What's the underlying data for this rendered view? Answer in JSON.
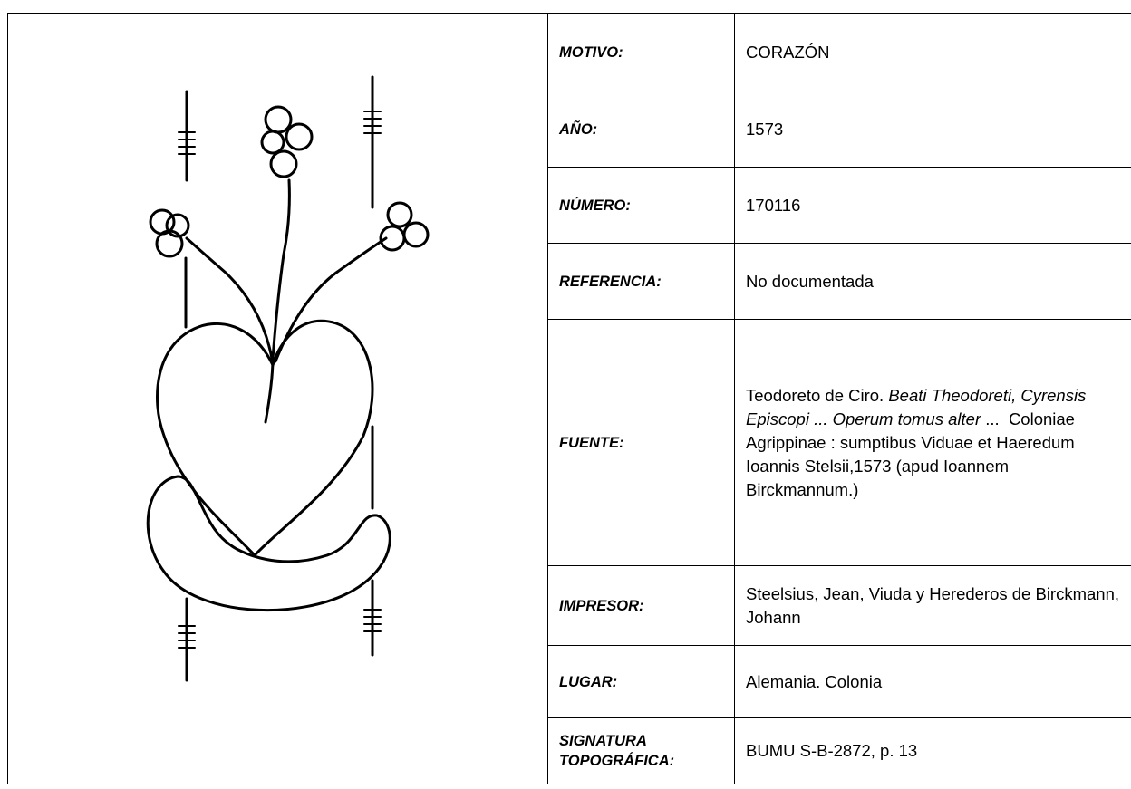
{
  "table": {
    "rows": [
      {
        "label": "MOTIVO:",
        "value": "CORAZÓN"
      },
      {
        "label": "AÑO:",
        "value": "1573"
      },
      {
        "label": "NÚMERO:",
        "value": "170116"
      },
      {
        "label": "REFERENCIA:",
        "value": "No documentada"
      },
      {
        "label": "FUENTE:",
        "value": [
          {
            "text": "Teodoreto de Ciro. "
          },
          {
            "text": "Beati Theodoreti, Cyrensis Episcopi ... Operum tomus alter",
            "italic": true
          },
          {
            "text": " ...  Coloniae Agrippinae : sumptibus Viduae et Haeredum Ioannis Stelsii,1573 (apud Ioannem Birckmannum.)"
          }
        ]
      },
      {
        "label": "IMPRESOR:",
        "value": "Steelsius, Jean, Viuda y Herederos de Birckmann, Johann"
      },
      {
        "label": "LUGAR:",
        "value": "Alemania. Colonia"
      },
      {
        "label": "SIGNATURA TOPOGRÁFICA:",
        "value": "BUMU S-B-2872, p. 13"
      }
    ]
  }
}
